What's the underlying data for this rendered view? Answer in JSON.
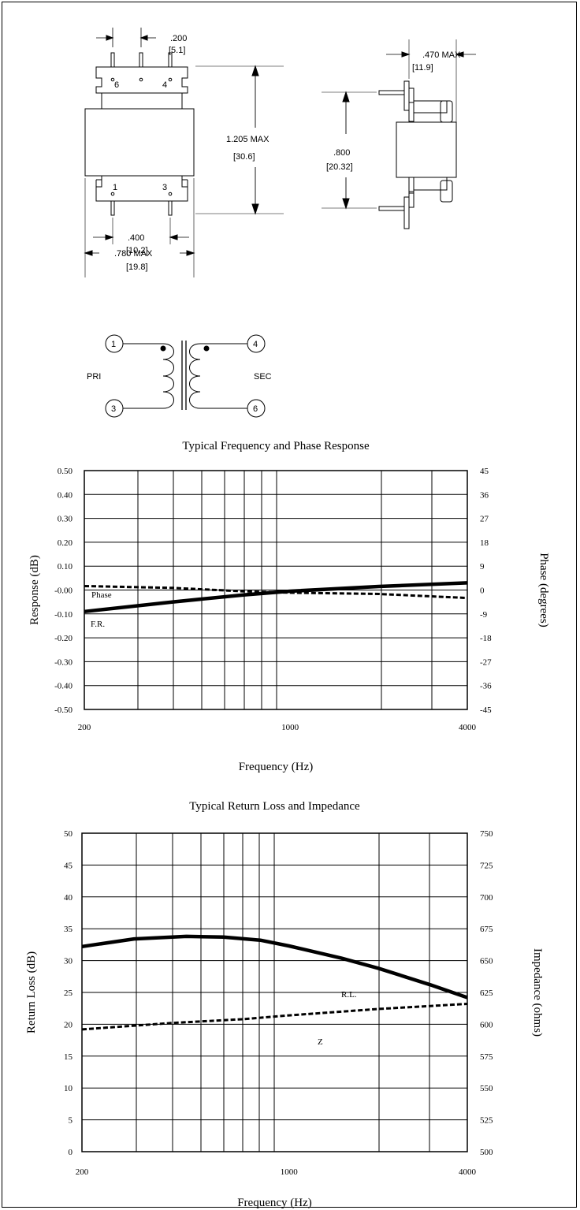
{
  "drawing": {
    "dim_pin_pitch": ".200",
    "dim_pin_pitch_mm": "[5.1]",
    "dim_height": "1.205 MAX",
    "dim_height_mm": "[30.6]",
    "dim_row_spacing": ".400",
    "dim_row_spacing_mm": "[10.2]",
    "dim_width": ".780 MAX",
    "dim_width_mm": "[19.8]",
    "dim_depth": ".470 MAX",
    "dim_depth_mm": "[11.9]",
    "dim_side_spacing": ".800",
    "dim_side_spacing_mm": "[20.32]",
    "pin_labels": {
      "p6": "6",
      "p4": "4",
      "p1": "1",
      "p3": "3"
    }
  },
  "schematic": {
    "pri_label": "PRI",
    "sec_label": "SEC",
    "pins": {
      "a": "1",
      "b": "3",
      "c": "4",
      "d": "6"
    }
  },
  "chart_data": [
    {
      "type": "line",
      "title": "Typical Frequency and Phase Response",
      "xlabel": "Frequency (Hz)",
      "ylabel": "Response (dB)",
      "y2label": "Phase (degrees)",
      "xscale": "log",
      "xlim": [
        200,
        4000
      ],
      "ylim": [
        -0.5,
        0.5
      ],
      "y2lim": [
        -45,
        45
      ],
      "x_tick_labels": [
        "200",
        "1000",
        "4000"
      ],
      "y_tick_labels": [
        "0.50",
        "0.40",
        "0.30",
        "0.20",
        "0.10",
        "-0.00",
        "-0.10",
        "-0.20",
        "-0.30",
        "-0.40",
        "-0.50"
      ],
      "y2_tick_labels": [
        "45",
        "36",
        "27",
        "18",
        "9",
        "0",
        "-9",
        "-18",
        "-27",
        "-36",
        "-45"
      ],
      "grid": true,
      "series": [
        {
          "name": "Phase",
          "axis": "right",
          "style": "dashed",
          "x": [
            200,
            400,
            700,
            1000,
            2000,
            4000
          ],
          "y": [
            1.5,
            0.8,
            -0.5,
            -1.0,
            -1.5,
            -3.0
          ]
        },
        {
          "name": "F.R.",
          "axis": "left",
          "style": "solid",
          "x": [
            200,
            400,
            700,
            1000,
            2000,
            4000
          ],
          "y": [
            -0.09,
            -0.05,
            -0.02,
            -0.005,
            0.015,
            0.03
          ]
        }
      ]
    },
    {
      "type": "line",
      "title": "Typical Return Loss and Impedance",
      "xlabel": "Frequency (Hz)",
      "ylabel": "Return Loss (dB)",
      "y2label": "Impedance (ohms)",
      "xscale": "log",
      "xlim": [
        200,
        4000
      ],
      "ylim": [
        0,
        50
      ],
      "y2lim": [
        500,
        750
      ],
      "x_tick_labels": [
        "200",
        "1000",
        "4000"
      ],
      "y_tick_labels": [
        "50",
        "45",
        "40",
        "35",
        "30",
        "25",
        "20",
        "15",
        "10",
        "5",
        "0"
      ],
      "y2_tick_labels": [
        "750",
        "725",
        "700",
        "675",
        "650",
        "625",
        "600",
        "575",
        "550",
        "525",
        "500"
      ],
      "grid": true,
      "series": [
        {
          "name": "R.L.",
          "axis": "left",
          "style": "solid",
          "x": [
            200,
            300,
            450,
            600,
            800,
            1000,
            1500,
            2000,
            3000,
            4000
          ],
          "y": [
            32.2,
            33.4,
            33.8,
            33.7,
            33.2,
            32.3,
            30.4,
            28.8,
            26.2,
            24.2
          ]
        },
        {
          "name": "Z",
          "axis": "right",
          "style": "dashed",
          "x": [
            200,
            400,
            700,
            1000,
            2000,
            4000
          ],
          "y": [
            596,
            601,
            604,
            607,
            612,
            616
          ]
        }
      ]
    }
  ]
}
